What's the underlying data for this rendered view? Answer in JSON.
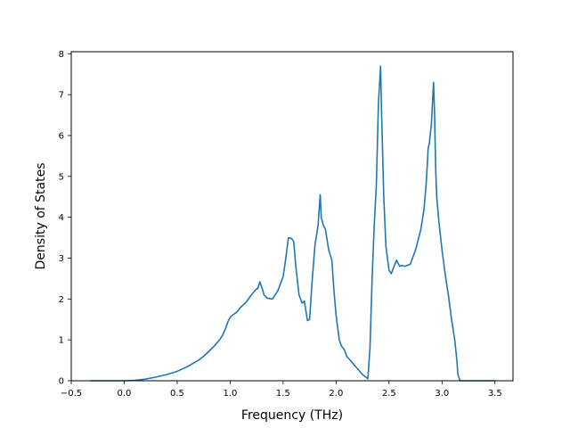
{
  "chart_data": {
    "type": "line",
    "title": "",
    "xlabel": "Frequency (THz)",
    "ylabel": "Density of States",
    "xlim": [
      -0.5,
      3.67
    ],
    "ylim": [
      0,
      8.05
    ],
    "xticks": [
      -0.5,
      0.0,
      0.5,
      1.0,
      1.5,
      2.0,
      2.5,
      3.0,
      3.5
    ],
    "xtick_labels": [
      "−0.5",
      "0.0",
      "0.5",
      "1.0",
      "1.5",
      "2.0",
      "2.5",
      "3.0",
      "3.5"
    ],
    "yticks": [
      0,
      1,
      2,
      3,
      4,
      5,
      6,
      7,
      8
    ],
    "ytick_labels": [
      "0",
      "1",
      "2",
      "3",
      "4",
      "5",
      "6",
      "7",
      "8"
    ],
    "grid": false,
    "legend": "none",
    "line_color": "#1f77b4",
    "series": [
      {
        "x": [
          -0.32,
          0.0,
          0.1,
          0.2,
          0.3,
          0.4,
          0.5,
          0.6,
          0.7,
          0.75,
          0.8,
          0.85,
          0.9,
          0.93,
          0.96,
          0.98,
          1.0,
          1.03,
          1.06,
          1.1,
          1.15,
          1.2,
          1.25,
          1.26,
          1.28,
          1.3,
          1.32,
          1.35,
          1.4,
          1.45,
          1.5,
          1.52,
          1.55,
          1.58,
          1.6,
          1.62,
          1.65,
          1.68,
          1.7,
          1.73,
          1.75,
          1.77,
          1.8,
          1.83,
          1.85,
          1.86,
          1.88,
          1.9,
          1.93,
          1.96,
          1.98,
          2.0,
          2.03,
          2.05,
          2.08,
          2.1,
          2.15,
          2.2,
          2.25,
          2.3,
          2.32,
          2.34,
          2.36,
          2.38,
          2.4,
          2.42,
          2.43,
          2.45,
          2.47,
          2.5,
          2.52,
          2.54,
          2.57,
          2.6,
          2.62,
          2.65,
          2.7,
          2.75,
          2.8,
          2.83,
          2.85,
          2.87,
          2.88,
          2.9,
          2.92,
          2.93,
          2.94,
          2.95,
          2.97,
          3.0,
          3.03,
          3.06,
          3.09,
          3.12,
          3.14,
          3.15,
          3.17,
          3.2,
          3.3,
          3.5
        ],
        "y": [
          0.0,
          0.0,
          0.01,
          0.04,
          0.09,
          0.15,
          0.23,
          0.35,
          0.5,
          0.6,
          0.72,
          0.85,
          1.0,
          1.12,
          1.3,
          1.45,
          1.55,
          1.62,
          1.67,
          1.8,
          1.92,
          2.1,
          2.25,
          2.25,
          2.42,
          2.28,
          2.1,
          2.02,
          2.0,
          2.2,
          2.55,
          2.9,
          3.5,
          3.48,
          3.4,
          2.8,
          2.1,
          1.9,
          1.95,
          1.47,
          1.5,
          2.3,
          3.3,
          3.8,
          4.55,
          4.0,
          3.8,
          3.7,
          3.2,
          2.95,
          2.2,
          1.6,
          1.0,
          0.85,
          0.75,
          0.6,
          0.45,
          0.3,
          0.15,
          0.05,
          0.8,
          2.5,
          3.8,
          4.8,
          6.8,
          7.7,
          6.5,
          4.5,
          3.3,
          2.7,
          2.62,
          2.75,
          2.95,
          2.8,
          2.82,
          2.8,
          2.85,
          3.2,
          3.7,
          4.2,
          4.8,
          5.7,
          5.8,
          6.3,
          7.3,
          6.5,
          5.2,
          4.5,
          3.9,
          3.2,
          2.6,
          2.1,
          1.5,
          1.0,
          0.5,
          0.15,
          0.0,
          0.0,
          0.0,
          0.0
        ]
      }
    ]
  }
}
